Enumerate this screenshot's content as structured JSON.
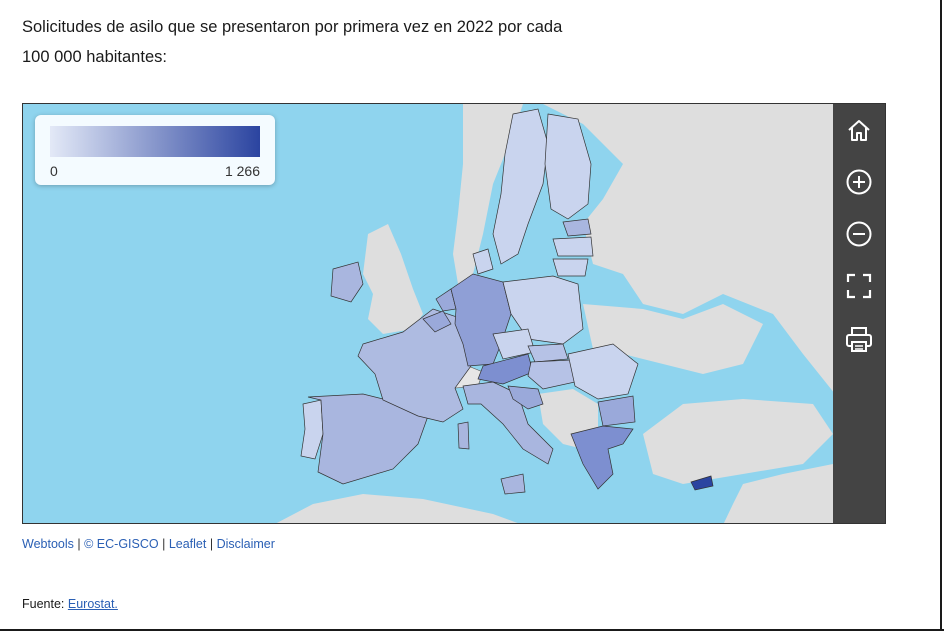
{
  "title": {
    "line1": "Solicitudes de asilo que se presentaron por primera vez en 2022 por cada",
    "line2": "100 000 habitantes:"
  },
  "legend": {
    "min_label": "0",
    "max_label": "1 266",
    "color_low": "#e3e9f7",
    "color_high": "#2b44a0"
  },
  "toolbar": {
    "buttons": [
      {
        "name": "home",
        "icon": "home-icon"
      },
      {
        "name": "zoom-in",
        "icon": "zoom-in-icon"
      },
      {
        "name": "zoom-out",
        "icon": "zoom-out-icon"
      },
      {
        "name": "fullscreen",
        "icon": "fullscreen-icon"
      },
      {
        "name": "print",
        "icon": "print-icon"
      }
    ]
  },
  "footer": {
    "links": [
      "Webtools",
      "© EC-GISCO",
      "Leaflet",
      "Disclaimer"
    ],
    "separator": "|"
  },
  "source": {
    "label": "Fuente: ",
    "link": "Eurostat."
  },
  "colors": {
    "sea": "#8fd4ee",
    "land_non_eu": "#dedede",
    "toolbar_bg": "#444444",
    "link": "#2a5fb4"
  }
}
